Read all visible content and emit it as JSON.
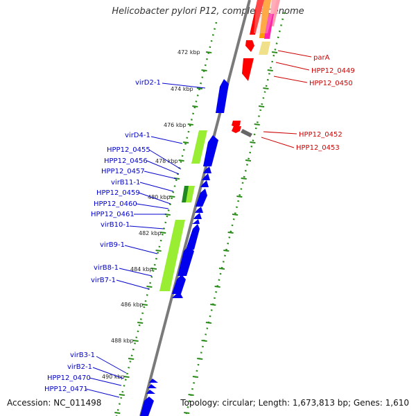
{
  "title": "Helicobacter pylori P12, complete genome",
  "accession": "Accession: NC_011498",
  "summary": "Topology: circular; Length: 1,673,813 bp; Genes: 1,610",
  "colors": {
    "forward_label": "#0000cc",
    "reverse_label": "#cc0000",
    "backbone": "#7a7a7a",
    "tick": "#2a8a1a"
  },
  "scale_labels": [
    "472 kbp",
    "474 kbp",
    "476 kbp",
    "478 kbp",
    "480 kbp",
    "482 kbp",
    "484 kbp",
    "486 kbp",
    "488 kbp",
    "490 kbp"
  ],
  "left_labels": [
    "virD2-1",
    "virD4-1",
    "HPP12_0455",
    "HPP12_0456",
    "HPP12_0457",
    "virB11-1",
    "HPP12_0459",
    "HPP12_0460",
    "HPP12_0461",
    "virB10-1",
    "virB9-1",
    "virB8-1",
    "virB7-1",
    "virB3-1",
    "virB2-1",
    "HPP12_0470",
    "HPP12_0471"
  ],
  "right_labels": [
    "parA",
    "HPP12_0449",
    "HPP12_0450",
    "HPP12_0452",
    "HPP12_0453"
  ]
}
